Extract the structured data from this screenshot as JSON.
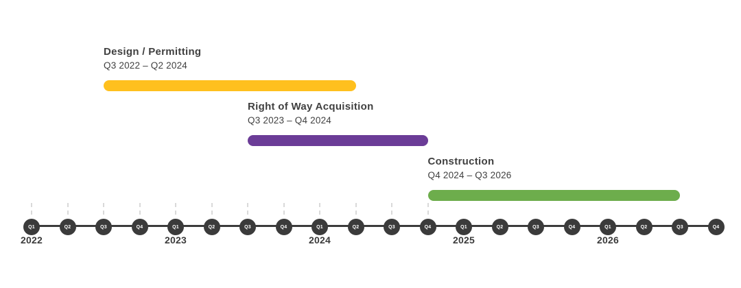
{
  "phases": [
    {
      "id": "design-permitting",
      "name": "Design / Permitting",
      "range": "Q3 2022 – Q2 2024",
      "start": "Q3 2022",
      "end": "Q2 2024",
      "start_index": 2,
      "end_index": 9,
      "color": "#FFC01E"
    },
    {
      "id": "right-of-way-acquisition",
      "name": "Right of Way Acquisition",
      "range": "Q3 2023 – Q4 2024",
      "start": "Q3 2023",
      "end": "Q4 2024",
      "start_index": 6,
      "end_index": 11,
      "color": "#6B3C97"
    },
    {
      "id": "construction",
      "name": "Construction",
      "range": "Q4 2024 – Q3 2026",
      "start": "Q4 2024",
      "end": "Q3 2026",
      "start_index": 11,
      "end_index": 18,
      "color": "#6DAD4C"
    }
  ],
  "axis": {
    "quarters": [
      {
        "label": "Q1",
        "year": "2022"
      },
      {
        "label": "Q2"
      },
      {
        "label": "Q3"
      },
      {
        "label": "Q4"
      },
      {
        "label": "Q1",
        "year": "2023"
      },
      {
        "label": "Q2"
      },
      {
        "label": "Q3"
      },
      {
        "label": "Q4"
      },
      {
        "label": "Q1",
        "year": "2024"
      },
      {
        "label": "Q2"
      },
      {
        "label": "Q3"
      },
      {
        "label": "Q4"
      },
      {
        "label": "Q1",
        "year": "2025"
      },
      {
        "label": "Q2"
      },
      {
        "label": "Q3"
      },
      {
        "label": "Q4"
      },
      {
        "label": "Q1",
        "year": "2026"
      },
      {
        "label": "Q2"
      },
      {
        "label": "Q3"
      },
      {
        "label": "Q4"
      }
    ],
    "ticked_quarters": 12
  },
  "colors": {
    "background": "#FFFFFF",
    "node_fill": "#3B3B3B",
    "axis_line": "#3B3B3B",
    "tick": "#D9D9D9",
    "title_text": "#404040",
    "range_text": "#404040",
    "year_text": "#3B3B3B",
    "quarter_text": "#FFFFFF"
  },
  "chart_data": {
    "type": "bar",
    "subtype": "gantt_timeline",
    "orientation": "horizontal",
    "title": "",
    "x_axis": {
      "unit": "quarter",
      "start": "Q1 2022",
      "end": "Q4 2026",
      "years": [
        "2022",
        "2023",
        "2024",
        "2025",
        "2026"
      ],
      "quarter_tick_labels": [
        "Q1",
        "Q2",
        "Q3",
        "Q4"
      ]
    },
    "series": [
      {
        "name": "Design / Permitting",
        "start": "Q3 2022",
        "end": "Q2 2024",
        "duration_quarters": 8,
        "color": "#FFC01E"
      },
      {
        "name": "Right of Way Acquisition",
        "start": "Q3 2023",
        "end": "Q4 2024",
        "duration_quarters": 6,
        "color": "#6B3C97"
      },
      {
        "name": "Construction",
        "start": "Q4 2024",
        "end": "Q3 2026",
        "duration_quarters": 8,
        "color": "#6DAD4C"
      }
    ],
    "legend": "none",
    "grid": "off"
  }
}
